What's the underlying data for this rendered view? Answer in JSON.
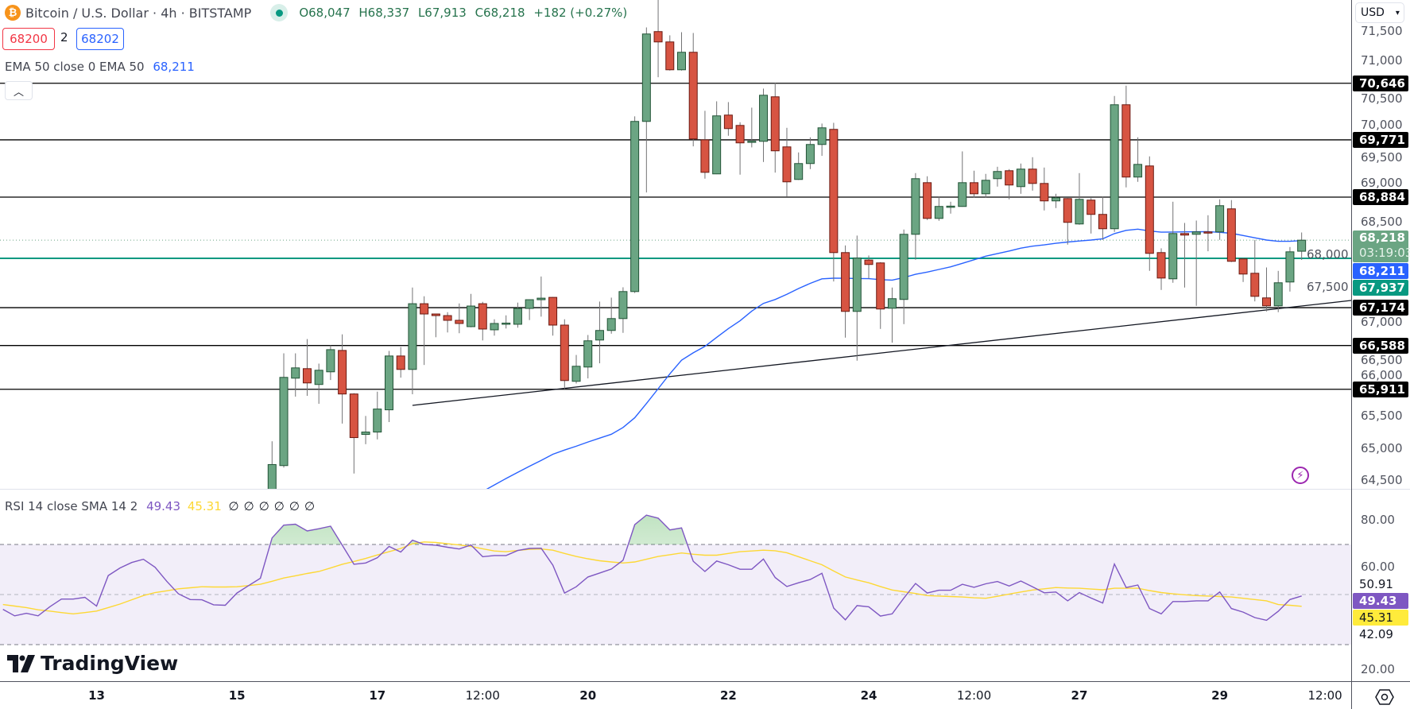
{
  "header": {
    "title": "Bitcoin / U.S. Dollar · 4h · BITSTAMP",
    "open": "O68,047",
    "high": "H68,337",
    "low": "L67,913",
    "close": "C68,218",
    "change": "+182 (+0.27%)",
    "sell_price": "68200",
    "spread": "2",
    "buy_price": "68202"
  },
  "ema_legend": {
    "label": "EMA 50 close 0 EMA 50",
    "value": "68,211"
  },
  "rsi_legend": {
    "label": "RSI 14 close SMA 14 2",
    "rsi": "49.43",
    "sma": "45.31",
    "extra": [
      "∅",
      "∅",
      "∅",
      "∅",
      "∅",
      "∅"
    ]
  },
  "currency": "USD",
  "price_axis": {
    "ticks": [
      71500,
      71000,
      70500,
      70000,
      69500,
      69000,
      68500,
      68000,
      67500,
      67000,
      66500,
      66000,
      65500,
      65000,
      64500
    ]
  },
  "levels": [
    {
      "label": "70,646",
      "price": 70646
    },
    {
      "label": "69,771",
      "price": 69771
    },
    {
      "label": "68,884",
      "price": 68884
    },
    {
      "label": "67,174",
      "price": 67174
    },
    {
      "label": "66,588",
      "price": 66588
    },
    {
      "label": "65,911",
      "price": 65911
    }
  ],
  "current_price": {
    "label": "68,218",
    "price": 68218,
    "countdown": "03:19:03"
  },
  "ema_badge": {
    "label": "68,211",
    "price": 68211
  },
  "support_line": {
    "label": "67,937",
    "price": 67937
  },
  "trendline": {
    "start_price": 65662,
    "end_price": 67285
  },
  "rsi_axis": {
    "ticks": [
      "80.00",
      "60.00",
      "20.00"
    ],
    "upper_band": "50.91",
    "rsi_value": "49.43",
    "sma_value": "45.31",
    "lower_band": "42.09"
  },
  "time_axis": {
    "labels": [
      "13",
      "15",
      "17",
      "12:00",
      "20",
      "22",
      "24",
      "12:00",
      "27",
      "29",
      "12:00"
    ]
  },
  "brand": "TradingView",
  "colors": {
    "up": "#6ba583",
    "up_border": "#225437",
    "down": "#d75442",
    "down_border": "#6b1a12",
    "ema": "#2962ff",
    "support": "#089981",
    "rsi": "#7e57c2",
    "rsi_sma": "#fdd835",
    "level": "#000000",
    "alert": "#9c27b0"
  },
  "chart_data": {
    "type": "candlestick",
    "ylim": [
      64500,
      71500
    ],
    "candles_ohlc": [
      [
        64300,
        65106,
        64200,
        64746
      ],
      [
        64730,
        66467,
        64700,
        66095
      ],
      [
        66083,
        66467,
        65797,
        66242
      ],
      [
        66230,
        66688,
        65809,
        66009
      ],
      [
        65985,
        66308,
        65686,
        66205
      ],
      [
        66181,
        66590,
        66054,
        66524
      ],
      [
        66512,
        66761,
        65380,
        65838
      ],
      [
        65838,
        65850,
        64607,
        65163
      ],
      [
        65212,
        65498,
        65061,
        65249
      ],
      [
        65249,
        65874,
        65135,
        65605
      ],
      [
        65593,
        66504,
        65404,
        66426
      ],
      [
        66426,
        66565,
        66091,
        66218
      ],
      [
        66218,
        67485,
        65834,
        67235
      ],
      [
        67235,
        67350,
        66287,
        67076
      ],
      [
        67076,
        67080,
        66716,
        67051
      ],
      [
        67051,
        67104,
        66790,
        66978
      ],
      [
        66978,
        67239,
        66778,
        66929
      ],
      [
        66880,
        67387,
        66870,
        67199
      ],
      [
        67235,
        67264,
        66667,
        66843
      ],
      [
        66831,
        66994,
        66741,
        66929
      ],
      [
        66929,
        67055,
        66851,
        66935
      ],
      [
        66917,
        67252,
        66864,
        67162
      ],
      [
        67162,
        67300,
        66982,
        67297
      ],
      [
        67297,
        67656,
        67035,
        67321
      ],
      [
        67333,
        67340,
        66741,
        66904
      ],
      [
        66904,
        66994,
        65911,
        66046
      ],
      [
        66034,
        66442,
        66000,
        66267
      ],
      [
        66255,
        66751,
        66079,
        66661
      ],
      [
        66673,
        67268,
        66313,
        66821
      ],
      [
        66821,
        67329,
        66771,
        67005
      ],
      [
        67005,
        67489,
        66784,
        67423
      ],
      [
        67423,
        70134,
        67400,
        70056
      ],
      [
        70056,
        71511,
        68957,
        71409
      ],
      [
        71446,
        71950,
        70740,
        71286
      ],
      [
        71286,
        71388,
        70843,
        70855
      ],
      [
        70855,
        71437,
        70843,
        71126
      ],
      [
        71126,
        71425,
        69670,
        69785
      ],
      [
        69771,
        70220,
        69170,
        69268
      ],
      [
        69244,
        70367,
        69240,
        70142
      ],
      [
        70154,
        70355,
        69834,
        69945
      ],
      [
        69994,
        70043,
        69232,
        69724
      ],
      [
        69740,
        70269,
        69654,
        69750
      ],
      [
        69748,
        70564,
        69428,
        70461
      ],
      [
        70437,
        70658,
        69264,
        69601
      ],
      [
        69662,
        69957,
        68887,
        69121
      ],
      [
        69158,
        69576,
        69150,
        69404
      ],
      [
        69404,
        69810,
        69318,
        69699
      ],
      [
        69699,
        70023,
        69523,
        69957
      ],
      [
        69933,
        70035,
        67579,
        68026
      ],
      [
        68026,
        68137,
        66710,
        67116
      ],
      [
        67116,
        68289,
        66354,
        67940
      ],
      [
        67911,
        67981,
        67624,
        67842
      ],
      [
        67866,
        67878,
        66845,
        67153
      ],
      [
        67165,
        67485,
        66632,
        67313
      ],
      [
        67301,
        68383,
        66919,
        68309
      ],
      [
        68309,
        69256,
        67916,
        69170
      ],
      [
        69108,
        69207,
        68530,
        68555
      ],
      [
        68555,
        68887,
        68518,
        68740
      ],
      [
        68740,
        68813,
        68629,
        68745
      ],
      [
        68740,
        69592,
        68735,
        69108
      ],
      [
        69108,
        69293,
        68875,
        68936
      ],
      [
        68936,
        69244,
        68875,
        69145
      ],
      [
        69170,
        69354,
        69047,
        69281
      ],
      [
        69293,
        69318,
        68850,
        69072
      ],
      [
        69047,
        69404,
        68936,
        69318
      ],
      [
        69318,
        69502,
        68985,
        69096
      ],
      [
        69096,
        69342,
        68678,
        68826
      ],
      [
        68826,
        68936,
        68715,
        68875
      ],
      [
        68862,
        68870,
        68149,
        68494
      ],
      [
        68469,
        69256,
        68457,
        68850
      ],
      [
        68838,
        68870,
        68321,
        68617
      ],
      [
        68617,
        68887,
        68223,
        68395
      ],
      [
        68395,
        70449,
        68346,
        70314
      ],
      [
        70314,
        70609,
        69035,
        69195
      ],
      [
        69195,
        69810,
        69121,
        69391
      ],
      [
        69367,
        69514,
        67743,
        68014
      ],
      [
        68026,
        68092,
        67448,
        67632
      ],
      [
        67620,
        68813,
        67559,
        68321
      ],
      [
        68321,
        68485,
        67485,
        68297
      ],
      [
        68309,
        68522,
        67202,
        68346
      ],
      [
        68346,
        68604,
        68047,
        68334
      ],
      [
        68346,
        68850,
        68223,
        68752
      ],
      [
        68703,
        68838,
        67880,
        67891
      ],
      [
        67928,
        67940,
        67571,
        67694
      ],
      [
        67706,
        68223,
        67271,
        67349
      ],
      [
        67325,
        67796,
        67116,
        67202
      ],
      [
        67202,
        67743,
        67104,
        67559
      ],
      [
        67571,
        68112,
        67423,
        68038
      ],
      [
        68047,
        68337,
        67913,
        68218
      ]
    ],
    "ema50": [
      null,
      null,
      null,
      null,
      null,
      null,
      null,
      null,
      null,
      null,
      null,
      null,
      null,
      null,
      null,
      null,
      null,
      null,
      64330,
      64430,
      64530,
      64625,
      64720,
      64810,
      64905,
      64970,
      65030,
      65095,
      65155,
      65215,
      65320,
      65470,
      65690,
      65920,
      66150,
      66360,
      66475,
      66575,
      66715,
      66850,
      66970,
      67120,
      67240,
      67300,
      67380,
      67470,
      67550,
      67620,
      67630,
      67628,
      67625,
      67622,
      67608,
      67600,
      67640,
      67690,
      67725,
      67765,
      67806,
      67860,
      67915,
      67970,
      68010,
      68050,
      68095,
      68125,
      68145,
      68170,
      68190,
      68205,
      68220,
      68240,
      68320,
      68370,
      68389,
      68360,
      68342,
      68345,
      68347,
      68348,
      68349,
      68340,
      68325,
      68290,
      68255,
      68220,
      68200,
      68200,
      68211
    ],
    "rsi_ylim": [
      0,
      100
    ],
    "rsi_levels": [
      70,
      50,
      30
    ],
    "rsi": [
      44.1,
      41.5,
      42.5,
      41.5,
      45.1,
      48.2,
      48.2,
      48.9,
      45.4,
      57.6,
      60.6,
      62.8,
      64.1,
      60.9,
      55.3,
      50.3,
      48.0,
      47.9,
      45.9,
      45.7,
      50.6,
      53.6,
      56.5,
      72.6,
      77.7,
      78.1,
      75.4,
      76.3,
      77.3,
      69.7,
      62.1,
      62.6,
      64.7,
      69.2,
      67.0,
      71.7,
      70.0,
      69.7,
      68.9,
      68.2,
      69.8,
      65.1,
      65.6,
      65.6,
      67.6,
      68.4,
      68.5,
      61.7,
      50.6,
      53.1,
      57.0,
      58.6,
      60.2,
      63.7,
      77.9,
      81.7,
      80.5,
      75.8,
      76.6,
      63.3,
      59.2,
      63.4,
      61.9,
      60.1,
      60.1,
      64.2,
      56.8,
      53.2,
      54.7,
      56.0,
      58.5,
      44.6,
      39.9,
      45.6,
      45.1,
      41.4,
      42.3,
      48.6,
      54.4,
      50.6,
      51.7,
      51.7,
      54.1,
      52.9,
      54.3,
      55.2,
      53.4,
      55.4,
      53.1,
      50.7,
      51.0,
      47.5,
      50.8,
      48.6,
      46.6,
      62.2,
      52.8,
      53.8,
      44.4,
      42.3,
      47.2,
      47.2,
      47.5,
      47.5,
      51.0,
      44.4,
      43.0,
      40.8,
      39.7,
      43.3,
      48.0,
      49.43
    ],
    "rsi_sma": [
      46.0,
      45.4,
      44.8,
      43.9,
      43.4,
      42.8,
      42.3,
      42.8,
      43.4,
      44.8,
      46.2,
      47.9,
      49.6,
      50.8,
      51.5,
      52.3,
      52.7,
      53.1,
      53.0,
      53.0,
      53.1,
      53.6,
      54.1,
      55.3,
      56.6,
      57.5,
      58.4,
      59.2,
      60.6,
      62.1,
      63.2,
      64.4,
      65.8,
      67.1,
      68.4,
      70.3,
      71.0,
      70.8,
      70.3,
      69.8,
      69.2,
      68.3,
      67.4,
      67.1,
      67.6,
      68.1,
      68.2,
      67.7,
      66.4,
      65.2,
      64.3,
      63.5,
      63.0,
      62.6,
      63.0,
      64.1,
      65.2,
      65.9,
      66.6,
      66.1,
      65.7,
      65.7,
      66.4,
      67.1,
      67.4,
      67.7,
      67.5,
      66.7,
      65.1,
      63.5,
      61.9,
      59.4,
      57.0,
      55.8,
      54.7,
      53.2,
      51.8,
      51.1,
      50.4,
      49.6,
      49.4,
      49.2,
      49.0,
      48.7,
      48.5,
      49.3,
      50.2,
      51.0,
      51.8,
      52.3,
      52.8,
      52.6,
      52.5,
      52.2,
      51.9,
      52.5,
      52.5,
      52.5,
      51.6,
      50.8,
      50.3,
      49.9,
      49.6,
      49.4,
      49.2,
      49.0,
      48.5,
      48.0,
      47.5,
      46.0,
      45.7,
      45.31
    ]
  }
}
